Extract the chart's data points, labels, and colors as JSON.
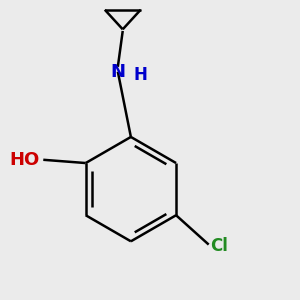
{
  "background_color": "#ebebeb",
  "bond_color": "#000000",
  "bond_width": 1.8,
  "figsize": [
    3.0,
    3.0
  ],
  "dpi": 100,
  "atom_labels": {
    "O": {
      "color": "#cc0000",
      "fontsize": 13
    },
    "N": {
      "color": "#0000cc",
      "fontsize": 13
    },
    "H_on_N": {
      "color": "#0000cc",
      "fontsize": 12
    },
    "Cl": {
      "color": "#228B22",
      "fontsize": 12
    }
  }
}
